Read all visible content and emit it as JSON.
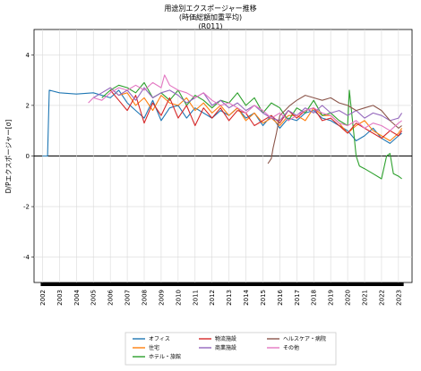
{
  "chart_data": {
    "type": "line",
    "title_lines": [
      "用途別エクスポージャー推移",
      "(時価総額加重平均)",
      "(R011)"
    ],
    "xlabel": "",
    "ylabel": "D/Pエクスポージャー[σ]",
    "ylim": [
      -5,
      5
    ],
    "yticks": [
      -4,
      -2,
      0,
      2,
      4
    ],
    "xlim": [
      2001.5,
      2023.8
    ],
    "xticks": [
      "2002",
      "2003",
      "2004",
      "2005",
      "2006",
      "2007",
      "2008",
      "2009",
      "2010",
      "2011",
      "2012",
      "2013",
      "2014",
      "2015",
      "2016",
      "2017",
      "2018",
      "2019",
      "2020",
      "2021",
      "2022",
      "2023"
    ],
    "grid": true,
    "zero_line": true,
    "legend_position": "bottom-center",
    "series": [
      {
        "name": "オフィス",
        "color": "#1f77b4",
        "x": [
          2002.0,
          2002.3,
          2002.4,
          2003,
          2004,
          2005,
          2006,
          2006.5,
          2007,
          2007.5,
          2008,
          2008.5,
          2009,
          2009.5,
          2010,
          2010.5,
          2011,
          2011.5,
          2012,
          2012.5,
          2013,
          2013.5,
          2014,
          2014.5,
          2015,
          2015.5,
          2016,
          2016.5,
          2017,
          2017.5,
          2018,
          2018.5,
          2019,
          2019.5,
          2020,
          2020.5,
          2021,
          2021.5,
          2022,
          2022.5,
          2023,
          2023.2
        ],
        "values": [
          0.0,
          0.0,
          2.6,
          2.5,
          2.45,
          2.5,
          2.3,
          2.6,
          2.1,
          1.8,
          1.5,
          2.2,
          1.4,
          1.9,
          2.0,
          1.5,
          1.9,
          1.7,
          1.5,
          1.8,
          1.6,
          1.9,
          1.5,
          1.7,
          1.2,
          1.6,
          1.1,
          1.5,
          1.4,
          1.7,
          1.8,
          1.5,
          1.4,
          1.2,
          1.0,
          0.6,
          0.8,
          1.1,
          0.7,
          0.5,
          0.8,
          0.9
        ]
      },
      {
        "name": "住宅",
        "color": "#ff7f0e",
        "x": [
          2006,
          2006.5,
          2007,
          2007.5,
          2008,
          2008.5,
          2009,
          2009.5,
          2010,
          2010.5,
          2011,
          2011.5,
          2012,
          2012.5,
          2013,
          2013.5,
          2014,
          2014.5,
          2015,
          2015.5,
          2016,
          2016.5,
          2017,
          2017.5,
          2018,
          2018.5,
          2019,
          2019.5,
          2020,
          2020.5,
          2021,
          2021.5,
          2022,
          2022.5,
          2023,
          2023.2
        ],
        "values": [
          2.7,
          2.4,
          2.5,
          2.0,
          2.3,
          1.8,
          2.4,
          2.1,
          2.0,
          2.3,
          1.8,
          2.1,
          1.7,
          2.0,
          1.6,
          1.9,
          1.4,
          1.7,
          1.3,
          1.5,
          1.2,
          1.6,
          1.6,
          1.4,
          1.9,
          1.6,
          1.6,
          1.3,
          0.9,
          1.2,
          1.4,
          1.0,
          0.8,
          0.6,
          0.9,
          1.1
        ]
      },
      {
        "name": "ホテル・旅館",
        "color": "#2ca02c",
        "x": [
          2005.5,
          2006,
          2006.5,
          2007,
          2007.5,
          2008,
          2008.5,
          2009,
          2009.5,
          2010,
          2010.5,
          2011,
          2011.5,
          2012,
          2012.5,
          2013,
          2013.5,
          2014,
          2014.5,
          2015,
          2015.5,
          2016,
          2016.5,
          2017,
          2017.5,
          2018,
          2018.5,
          2019,
          2019.5,
          2020,
          2020.1,
          2020.3,
          2020.5,
          2020.7,
          2021,
          2021.5,
          2022,
          2022.3,
          2022.5,
          2022.7,
          2023,
          2023.2
        ],
        "values": [
          2.3,
          2.6,
          2.8,
          2.7,
          2.5,
          2.9,
          2.3,
          2.5,
          2.2,
          2.6,
          2.0,
          2.4,
          2.2,
          1.9,
          2.2,
          2.1,
          2.5,
          2.0,
          2.3,
          1.7,
          2.1,
          1.9,
          1.4,
          1.9,
          1.7,
          2.2,
          1.6,
          1.7,
          1.4,
          1.2,
          2.6,
          1.3,
          0.0,
          -0.4,
          -0.5,
          -0.7,
          -0.9,
          0.0,
          0.1,
          -0.7,
          -0.8,
          -0.9
        ]
      },
      {
        "name": "物流施設",
        "color": "#d62728",
        "x": [
          2006,
          2006.5,
          2007,
          2007.5,
          2008,
          2008.5,
          2009,
          2009.5,
          2010,
          2010.5,
          2011,
          2011.5,
          2012,
          2012.5,
          2013,
          2013.5,
          2014,
          2014.5,
          2015,
          2015.5,
          2016,
          2016.5,
          2017,
          2017.5,
          2018,
          2018.5,
          2019,
          2019.5,
          2020,
          2020.5,
          2021,
          2021.5,
          2022,
          2022.5,
          2023,
          2023.2
        ],
        "values": [
          2.6,
          2.2,
          1.8,
          2.4,
          1.3,
          2.1,
          1.6,
          2.3,
          1.5,
          2.0,
          1.2,
          1.9,
          1.5,
          1.9,
          1.4,
          1.8,
          1.7,
          1.2,
          1.4,
          1.6,
          1.3,
          1.8,
          1.5,
          1.8,
          1.9,
          1.4,
          1.5,
          1.2,
          0.9,
          1.3,
          1.1,
          0.9,
          0.7,
          1.0,
          0.8,
          1.0
        ]
      },
      {
        "name": "商業施設",
        "color": "#9467bd",
        "x": [
          2005,
          2005.5,
          2006,
          2006.5,
          2007,
          2007.5,
          2008,
          2008.5,
          2009,
          2009.5,
          2010,
          2010.5,
          2011,
          2011.5,
          2012,
          2012.5,
          2013,
          2013.5,
          2014,
          2014.5,
          2015,
          2015.5,
          2016,
          2016.5,
          2017,
          2017.5,
          2018,
          2018.5,
          2019,
          2019.5,
          2020,
          2020.5,
          2021,
          2021.5,
          2022,
          2022.5,
          2023,
          2023.2
        ],
        "values": [
          2.3,
          2.5,
          2.7,
          2.4,
          2.6,
          2.2,
          2.7,
          2.3,
          2.5,
          2.6,
          2.4,
          2.1,
          2.3,
          2.5,
          2.0,
          2.2,
          1.9,
          2.1,
          1.8,
          2.0,
          1.7,
          1.5,
          1.4,
          1.8,
          1.6,
          1.9,
          1.7,
          2.0,
          1.7,
          1.8,
          1.6,
          1.8,
          1.5,
          1.7,
          1.6,
          1.4,
          1.5,
          1.7
        ]
      },
      {
        "name": "ヘルスケア・病院",
        "color": "#8c564b",
        "x": [
          2015.3,
          2015.4,
          2015.5,
          2015.6,
          2015.8,
          2016,
          2016.3,
          2016.6,
          2017,
          2017.5,
          2018,
          2018.5,
          2019,
          2019.5,
          2020,
          2020.5,
          2021,
          2021.5,
          2022,
          2022.5,
          2023,
          2023.2
        ],
        "values": [
          -0.3,
          -0.2,
          -0.1,
          0.3,
          0.9,
          1.6,
          1.8,
          2.0,
          2.2,
          2.4,
          2.3,
          2.2,
          2.3,
          2.1,
          2.0,
          1.8,
          1.9,
          2.0,
          1.8,
          1.4,
          1.1,
          1.2
        ]
      },
      {
        "name": "その他",
        "color": "#e377c2",
        "x": [
          2004.7,
          2005,
          2005.5,
          2006,
          2006.5,
          2007,
          2007.5,
          2008,
          2008.5,
          2009,
          2009.2,
          2009.5,
          2010,
          2010.5,
          2011,
          2011.5,
          2012,
          2012.5,
          2013,
          2013.5,
          2014,
          2014.5,
          2015,
          2015.5,
          2016,
          2016.5,
          2017,
          2017.5,
          2018,
          2018.5,
          2019,
          2019.5,
          2020,
          2020.5,
          2021,
          2021.5,
          2022,
          2022.5,
          2023,
          2023.2
        ],
        "values": [
          2.1,
          2.3,
          2.2,
          2.5,
          2.7,
          2.6,
          2.8,
          2.6,
          2.9,
          2.7,
          3.2,
          2.8,
          2.6,
          2.5,
          2.3,
          2.5,
          2.2,
          2.0,
          2.1,
          1.9,
          1.7,
          2.0,
          1.8,
          1.5,
          1.7,
          1.4,
          1.6,
          1.8,
          1.9,
          1.7,
          1.6,
          1.3,
          1.2,
          1.4,
          1.1,
          1.3,
          1.2,
          1.0,
          1.3,
          1.4
        ]
      }
    ]
  }
}
